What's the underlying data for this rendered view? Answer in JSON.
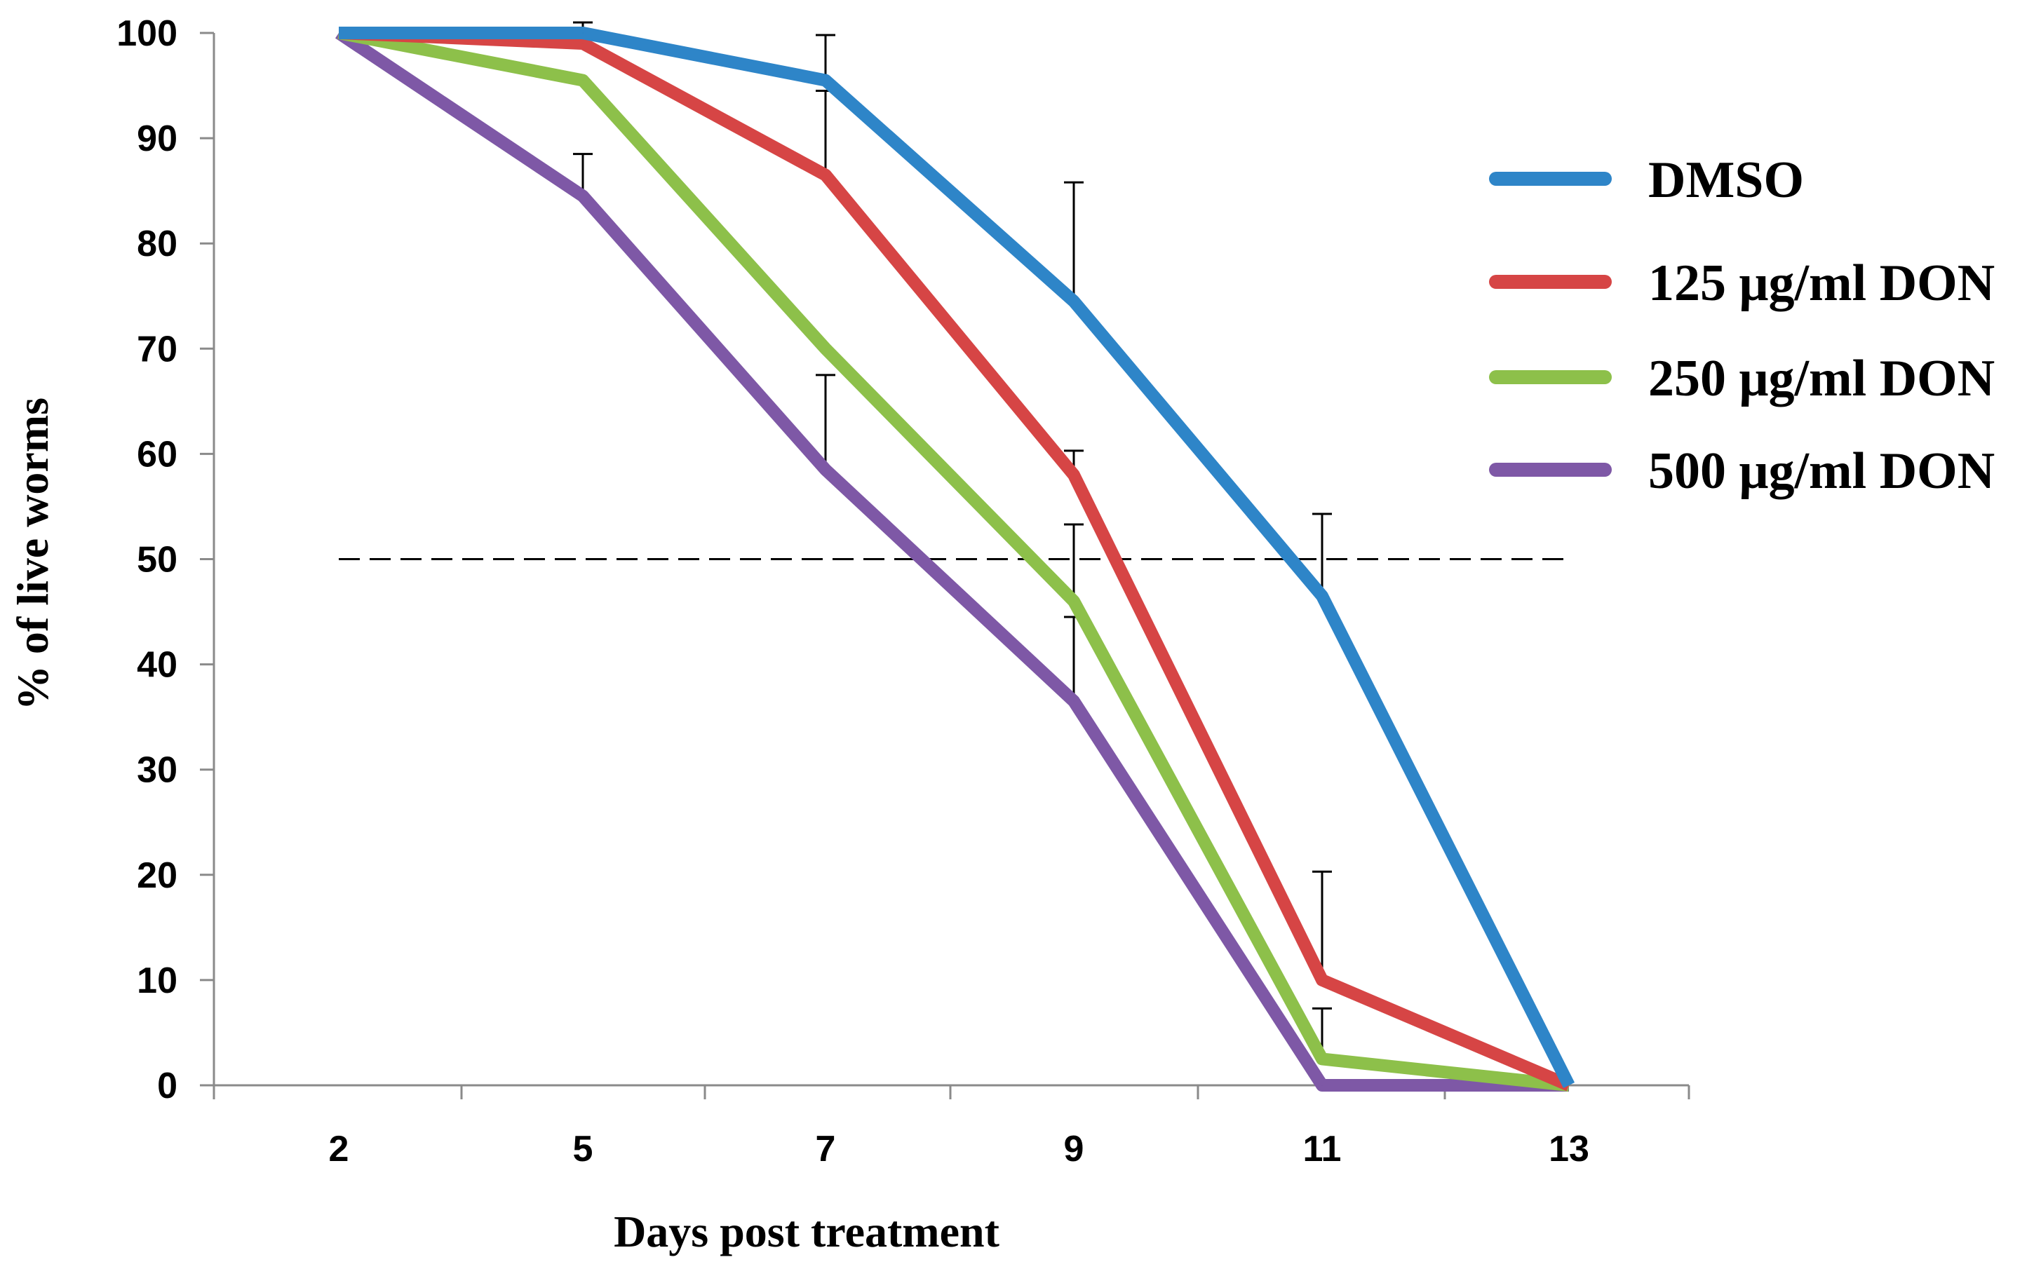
{
  "chart_data": {
    "type": "line",
    "title": "",
    "xlabel": "Days post treatment",
    "ylabel": "% of live worms",
    "categories": [
      "2",
      "5",
      "7",
      "9",
      "11",
      "13"
    ],
    "ylim": [
      0,
      100
    ],
    "yticks": [
      0,
      10,
      20,
      30,
      40,
      50,
      60,
      70,
      80,
      90,
      100
    ],
    "grid": false,
    "legend_position": "right",
    "reference_line": {
      "value": 50,
      "style": "dashed",
      "from_category": "2",
      "to_category": "13"
    },
    "series": [
      {
        "name": "DMSO",
        "color": "#2E85C8",
        "values": [
          100,
          100,
          95.5,
          74.5,
          46.5,
          0
        ],
        "error_plus": [
          null,
          null,
          4.3,
          11.3,
          7.8,
          null
        ]
      },
      {
        "name": "125 μg/ml DON",
        "color": "#D64545",
        "values": [
          100,
          99,
          86.5,
          58,
          10,
          0
        ],
        "error_plus": [
          null,
          2,
          8,
          2.3,
          10.3,
          null
        ]
      },
      {
        "name": "250 μg/ml DON",
        "color": "#8DC04A",
        "values": [
          100,
          95.5,
          70,
          46,
          2.5,
          0
        ],
        "error_plus": [
          null,
          null,
          null,
          7.3,
          4.8,
          null
        ]
      },
      {
        "name": "500 μg/ml DON",
        "color": "#7E58A6",
        "values": [
          100,
          84.5,
          58.5,
          36.5,
          0,
          0
        ],
        "error_plus": [
          null,
          4,
          9,
          8,
          null,
          null
        ]
      }
    ]
  }
}
